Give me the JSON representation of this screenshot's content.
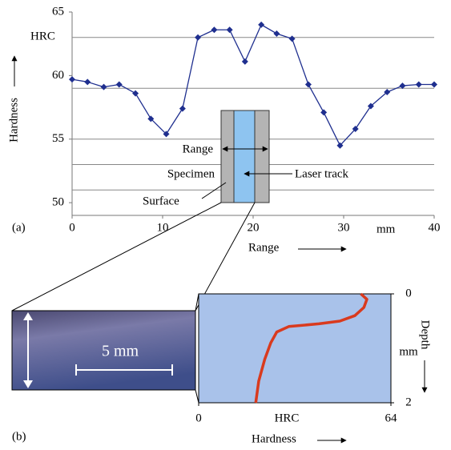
{
  "figure": {
    "panel_a_label": "(a)",
    "panel_b_label": "(b)",
    "scale_bar": "5 mm",
    "annotations": {
      "range": "Range",
      "specimen": "Specimen",
      "laser_track": "Laser track",
      "surface": "Surface"
    }
  },
  "chart_data": [
    {
      "type": "line",
      "y_label": "Hardness",
      "y_unit": "HRC",
      "x_label": "Range",
      "x_unit": "mm",
      "x": [
        0,
        1.7,
        3.5,
        5.2,
        7.0,
        8.7,
        10.4,
        12.2,
        13.9,
        15.7,
        17.4,
        19.1,
        20.9,
        22.6,
        24.3,
        26.1,
        27.8,
        29.6,
        31.3,
        33.0,
        34.8,
        36.5,
        38.3,
        40
      ],
      "series": [
        {
          "color": "#1f2f8f",
          "values": [
            59.7,
            59.5,
            59.1,
            59.3,
            58.6,
            56.6,
            55.4,
            57.4,
            63.0,
            63.6,
            63.6,
            61.1,
            64.0,
            63.3,
            62.9,
            59.3,
            57.1,
            54.5,
            55.8,
            57.6,
            58.7,
            59.2,
            59.3,
            59.3
          ]
        }
      ],
      "xlim": [
        0,
        40
      ],
      "xticks": [
        0,
        10,
        20,
        30,
        40
      ],
      "ylim": [
        49,
        65
      ],
      "yticks": [
        50,
        55,
        60,
        65
      ],
      "grid_lines": [
        51,
        53,
        55,
        59,
        63
      ]
    },
    {
      "type": "line",
      "x_label": "Hardness",
      "x_unit": "HRC",
      "y_label": "Depth",
      "y_unit": "mm",
      "x": [
        54,
        56,
        55,
        52,
        47,
        40,
        30,
        26,
        24,
        22,
        20,
        19
      ],
      "series": [
        {
          "color": "#d93a1e",
          "values": [
            0,
            0.1,
            0.25,
            0.4,
            0.5,
            0.55,
            0.6,
            0.7,
            0.9,
            1.2,
            1.6,
            2.0
          ]
        }
      ],
      "xlim": [
        0,
        64
      ],
      "xticks": [
        0,
        64
      ],
      "ylim": [
        0,
        2
      ],
      "yticks": [
        0,
        2
      ],
      "y_inverted": true,
      "background": "#a9c2ea"
    }
  ]
}
